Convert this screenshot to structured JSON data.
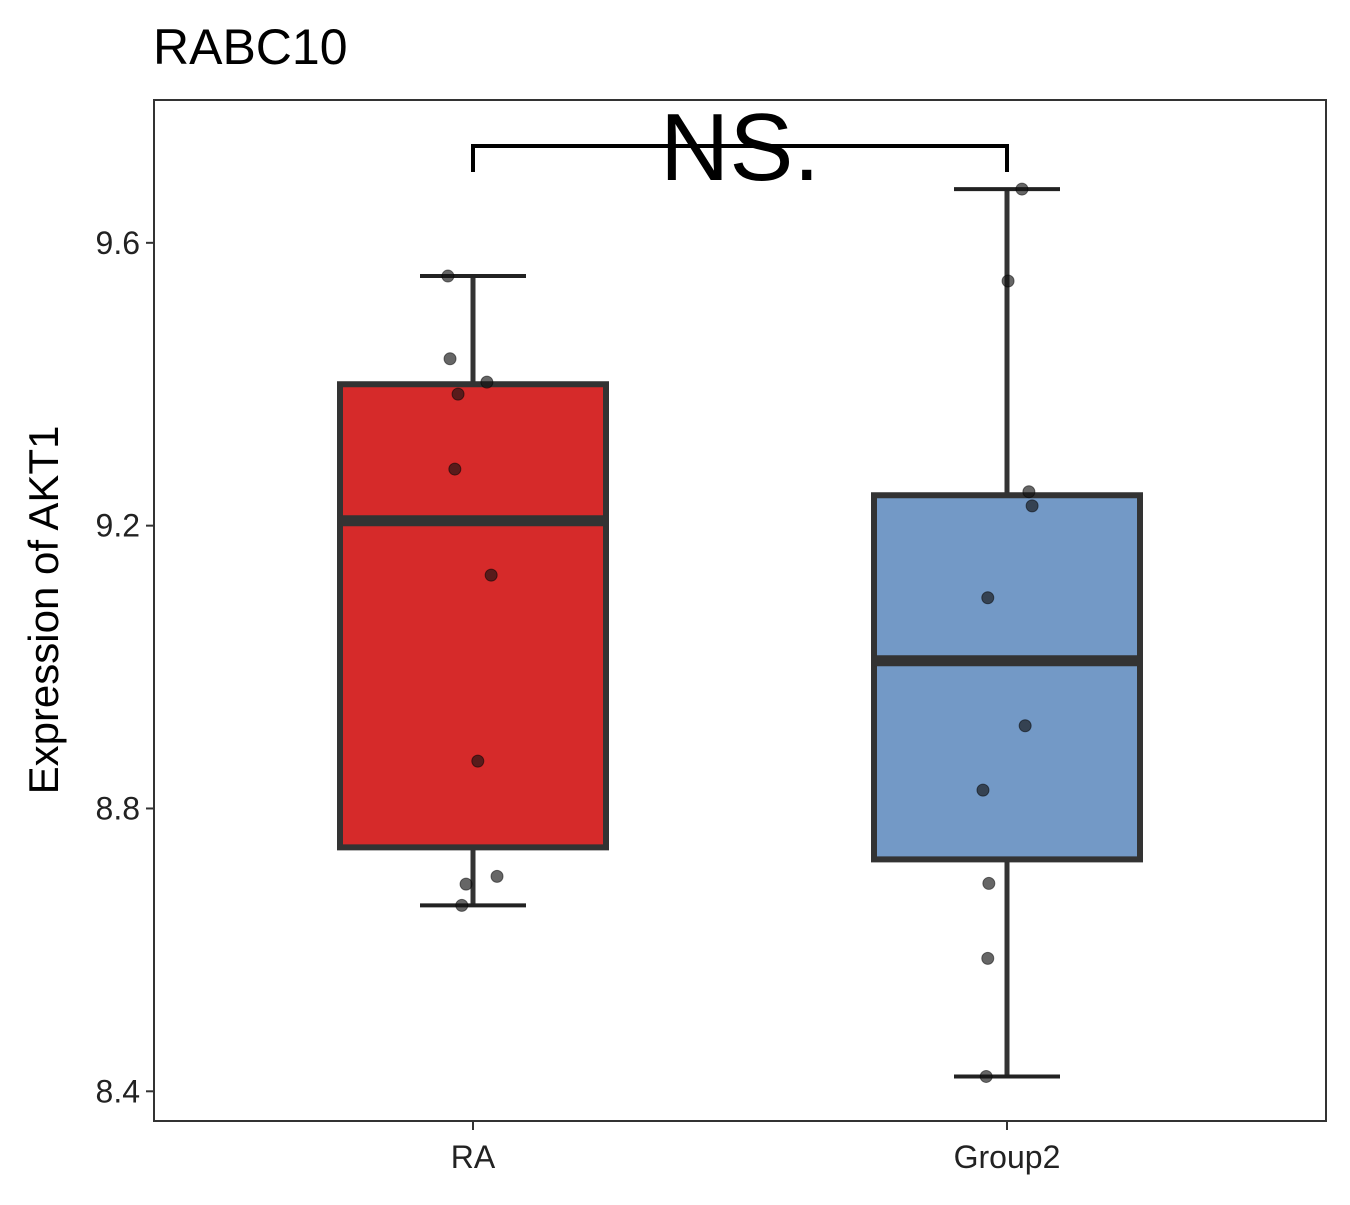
{
  "chart_data": {
    "type": "box",
    "title": "RABC10",
    "xlabel": "",
    "ylabel": "Expression of AKT1",
    "ylim": [
      8.358,
      9.802
    ],
    "yticks": [
      "8.4",
      "8.8",
      "9.2",
      "9.6"
    ],
    "grid": false,
    "legend": "none",
    "categories": [
      "RA",
      "Group2"
    ],
    "colors": [
      "#D62A2A",
      "#7399C6"
    ],
    "boxes": [
      {
        "name": "RA",
        "whisker_low": 8.663,
        "q1": 8.745,
        "median": 9.207,
        "q3": 9.4,
        "whisker_high": 9.553,
        "points": [
          9.553,
          9.436,
          9.386,
          9.403,
          9.28,
          9.13,
          8.867,
          8.704,
          8.693,
          8.663
        ],
        "jitter": [
          -0.047,
          -0.043,
          -0.028,
          0.026,
          -0.034,
          0.034,
          0.009,
          0.045,
          -0.013,
          -0.021
        ]
      },
      {
        "name": "Group2",
        "whisker_low": 8.421,
        "q1": 8.728,
        "median": 9.009,
        "q3": 9.243,
        "whisker_high": 9.676,
        "points": [
          9.676,
          9.546,
          9.248,
          9.228,
          9.098,
          8.917,
          8.826,
          8.694,
          8.588,
          8.421
        ],
        "jitter": [
          0.028,
          0.002,
          0.041,
          0.047,
          -0.036,
          0.034,
          -0.045,
          -0.034,
          -0.036,
          -0.039
        ]
      }
    ],
    "annotation": {
      "label": "NS.",
      "between": [
        "RA",
        "Group2"
      ]
    }
  }
}
